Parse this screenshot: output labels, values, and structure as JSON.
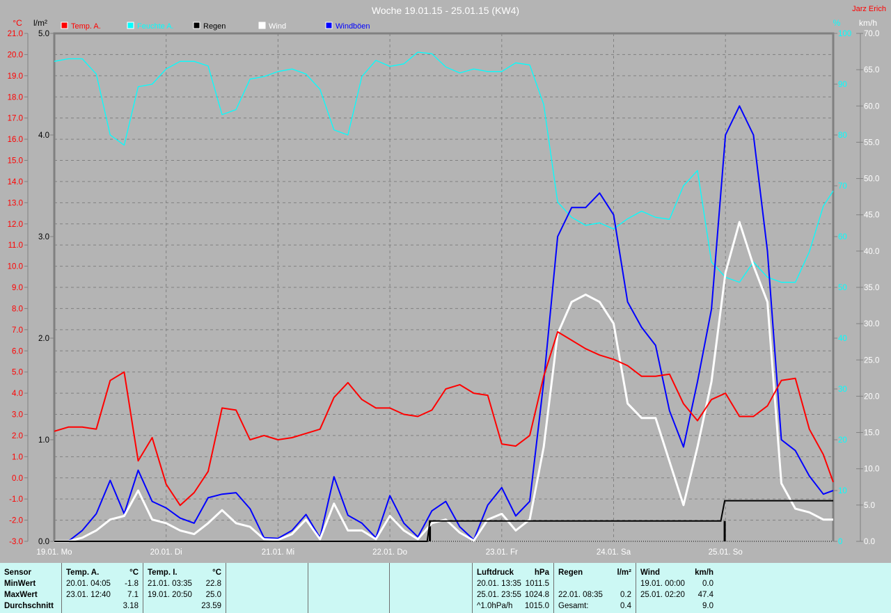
{
  "title": "Woche 19.01.15 - 25.01.15 (KW4)",
  "author": "Jarz Erich",
  "colors": {
    "temp": "#ff0000",
    "humidity": "#00ffff",
    "rain": "#000000",
    "wind": "#ffffff",
    "gusts": "#0000ff",
    "background": "#b4b4b4",
    "stats_background": "#ccf8f4"
  },
  "chart_data": {
    "type": "line",
    "title": "Woche 19.01.15 - 25.01.15 (KW4)",
    "grid": true,
    "legend_position": "top",
    "x_tick_labels": [
      "19.01. Mo",
      "20.01. Di",
      "21.01. Mi",
      "22.01. Do",
      "23.01. Fr",
      "24.01. Sa",
      "25.01. So"
    ],
    "axes": {
      "temp": {
        "unit": "°C",
        "range": [
          -3.0,
          21.0
        ],
        "ticks": [
          "21.0",
          "20.0",
          "19.0",
          "18.0",
          "17.0",
          "16.0",
          "15.0",
          "14.0",
          "13.0",
          "12.0",
          "11.0",
          "10.0",
          "9.0",
          "8.0",
          "7.0",
          "6.0",
          "5.0",
          "4.0",
          "3.0",
          "2.0",
          "1.0",
          "0.0",
          "-1.0",
          "-2.0",
          "-3.0"
        ]
      },
      "rain": {
        "unit": "l/m²",
        "range": [
          0.0,
          5.0
        ],
        "ticks": [
          "5.0",
          "4.0",
          "3.0",
          "2.0",
          "1.0",
          "0.0"
        ]
      },
      "humidity": {
        "unit": "%",
        "range": [
          0,
          100
        ],
        "ticks": [
          "100",
          "90",
          "80",
          "70",
          "60",
          "50",
          "40",
          "30",
          "20",
          "10",
          "0"
        ]
      },
      "wind": {
        "unit": "km/h",
        "range": [
          0.0,
          70.0
        ],
        "ticks": [
          "70.0",
          "65.0",
          "60.0",
          "55.0",
          "50.0",
          "45.0",
          "40.0",
          "35.0",
          "30.0",
          "25.0",
          "20.0",
          "15.0",
          "10.0",
          "5.0",
          "0.0"
        ]
      }
    },
    "times": [
      "19.01. 00:00",
      "19.01. 03:00",
      "19.01. 06:00",
      "19.01. 09:00",
      "19.01. 12:00",
      "19.01. 15:00",
      "19.01. 18:00",
      "19.01. 21:00",
      "20.01. 00:00",
      "20.01. 03:00",
      "20.01. 06:00",
      "20.01. 09:00",
      "20.01. 12:00",
      "20.01. 15:00",
      "20.01. 18:00",
      "20.01. 21:00",
      "21.01. 00:00",
      "21.01. 03:00",
      "21.01. 06:00",
      "21.01. 09:00",
      "21.01. 12:00",
      "21.01. 15:00",
      "21.01. 18:00",
      "21.01. 21:00",
      "22.01. 00:00",
      "22.01. 03:00",
      "22.01. 06:00",
      "22.01. 09:00",
      "22.01. 12:00",
      "22.01. 15:00",
      "22.01. 18:00",
      "22.01. 21:00",
      "23.01. 00:00",
      "23.01. 03:00",
      "23.01. 06:00",
      "23.01. 09:00",
      "23.01. 12:00",
      "23.01. 15:00",
      "23.01. 18:00",
      "23.01. 21:00",
      "24.01. 00:00",
      "24.01. 03:00",
      "24.01. 06:00",
      "24.01. 09:00",
      "24.01. 12:00",
      "24.01. 15:00",
      "24.01. 18:00",
      "24.01. 21:00",
      "25.01. 00:00",
      "25.01. 03:00",
      "25.01. 06:00",
      "25.01. 09:00",
      "25.01. 12:00",
      "25.01. 15:00",
      "25.01. 18:00",
      "25.01. 21:00",
      "25.01. 23:55"
    ],
    "series": [
      {
        "name": "Feuchte A.",
        "axis": "humidity",
        "values": [
          94.5,
          95,
          95,
          92,
          80,
          78,
          89.5,
          90,
          93,
          94.5,
          94.5,
          93.6,
          84,
          85,
          91,
          91.5,
          92.5,
          93,
          92,
          89,
          81,
          80,
          91.5,
          94.7,
          93.5,
          94,
          96.3,
          96,
          93.4,
          92.2,
          93,
          92.5,
          92.5,
          94.2,
          93.8,
          86,
          66.8,
          63.8,
          62.2,
          62.7,
          61.5,
          63.5,
          65,
          63.8,
          63.4,
          70,
          73,
          55,
          52,
          51,
          55,
          52,
          51,
          51,
          57,
          66,
          69
        ]
      },
      {
        "name": "Windböen",
        "axis": "wind",
        "values": [
          0,
          0,
          1.5,
          3.8,
          8.4,
          3.8,
          9.8,
          5.5,
          4.6,
          3.2,
          2.5,
          6,
          6.5,
          6.7,
          4.5,
          0.5,
          0.4,
          1.5,
          3.7,
          0.5,
          8.9,
          3.6,
          2.5,
          0.5,
          6.3,
          2.5,
          0.6,
          4.2,
          5.5,
          2,
          0.2,
          5,
          7.4,
          3.5,
          5.5,
          22,
          42,
          46,
          46,
          48,
          45,
          33,
          29.5,
          27,
          18,
          13,
          22,
          32,
          56,
          60,
          56,
          40,
          14,
          12.5,
          9,
          6.5,
          7
        ]
      },
      {
        "name": "Wind",
        "axis": "wind",
        "values": [
          0,
          0,
          0.5,
          1.5,
          3,
          3.5,
          7,
          3,
          2.5,
          1.5,
          1,
          2.5,
          4.3,
          2.5,
          2,
          0.3,
          0.2,
          1,
          3,
          0.3,
          5.2,
          1.5,
          1.5,
          0.3,
          3.5,
          1.5,
          0.3,
          2.5,
          3,
          1.2,
          0.1,
          3,
          3.8,
          1.5,
          3,
          13,
          28.6,
          33,
          34,
          33,
          30,
          19,
          17,
          17,
          11,
          5,
          13,
          22,
          37,
          44,
          38,
          33,
          8,
          4.5,
          4,
          3,
          3
        ]
      },
      {
        "name": "Temp. A.",
        "axis": "temp",
        "values": [
          2.2,
          2.4,
          2.4,
          2.3,
          4.6,
          5.0,
          0.8,
          1.9,
          -0.3,
          -1.3,
          -0.7,
          0.3,
          3.3,
          3.2,
          1.8,
          2.0,
          1.8,
          1.9,
          2.1,
          2.3,
          3.8,
          4.5,
          3.7,
          3.3,
          3.3,
          3.0,
          2.9,
          3.2,
          4.2,
          4.4,
          4.0,
          3.9,
          1.6,
          1.5,
          2.0,
          4.8,
          6.9,
          6.5,
          6.1,
          5.8,
          5.6,
          5.3,
          4.8,
          4.8,
          4.9,
          3.5,
          2.7,
          3.7,
          4.0,
          2.9,
          2.9,
          3.4,
          4.6,
          4.7,
          2.3,
          1.1,
          -0.2
        ]
      }
    ],
    "rain": {
      "name": "Regen",
      "axis": "rain",
      "cumulative": [
        [
          "19.01. 00:00",
          0
        ],
        [
          "22.01. 08:00",
          0
        ],
        [
          "22.01. 08:35",
          0.2
        ],
        [
          "24.01. 23:00",
          0.2
        ],
        [
          "24.01. 23:50",
          0.4
        ],
        [
          "25.01. 23:55",
          0.4
        ]
      ],
      "events": [
        [
          "22.01. 08:35",
          0.2
        ],
        [
          "24.01. 23:50",
          0.2
        ]
      ]
    }
  },
  "legend": [
    {
      "label": "Temp. A.",
      "color": "#ff0000"
    },
    {
      "label": "Feuchte A.",
      "color": "#00ffff"
    },
    {
      "label": "Regen",
      "color": "#000000"
    },
    {
      "label": "Wind",
      "color": "#ffffff"
    },
    {
      "label": "Windböen",
      "color": "#0000ff"
    }
  ],
  "stats": {
    "labels": {
      "header": "Sensor",
      "min": "MinWert",
      "max": "MaxWert",
      "avg": "Durchschnitt"
    },
    "temp_a": {
      "title": "Temp. A.",
      "unit": "°C",
      "min_time": "20.01.  04:05",
      "min": "-1.8",
      "max_time": "23.01.  12:40",
      "max": "7.1",
      "avg": "3.18"
    },
    "temp_i": {
      "title": "Temp. I.",
      "unit": "°C",
      "min_time": "21.01.  03:35",
      "min": "22.8",
      "max_time": "19.01.  20:50",
      "max": "25.0",
      "avg": "23.59"
    },
    "pressure": {
      "title": "Luftdruck",
      "unit": "hPa",
      "min_time": "20.01.  13:35",
      "min": "1011.5",
      "max_time": "25.01.  23:55",
      "max": "1024.8",
      "trend": "^1.0hPa/h",
      "avg": "1015.0"
    },
    "rain": {
      "title": "Regen",
      "unit": "l/m²",
      "max_time": "22.01.  08:35",
      "max": "0.2",
      "total_label": "Gesamt:",
      "total": "0.4"
    },
    "wind": {
      "title": "Wind",
      "unit": "km/h",
      "min_time": "19.01.  00:00",
      "min": "0.0",
      "max_time": "25.01.  02:20",
      "max": "47.4",
      "avg": "9.0"
    }
  }
}
